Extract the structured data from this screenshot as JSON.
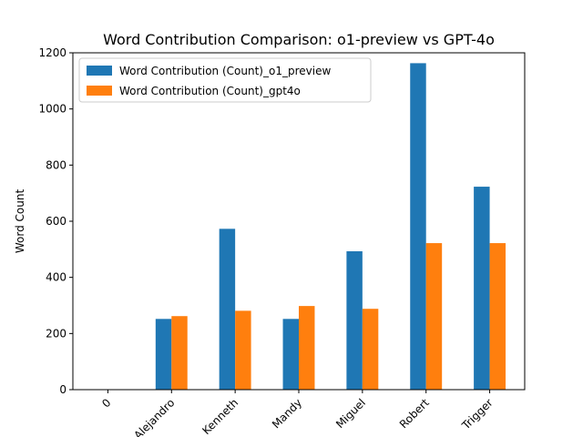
{
  "chart_data": {
    "type": "bar",
    "title": "Word Contribution Comparison: o1-preview vs GPT-4o",
    "xlabel": "",
    "ylabel": "Word Count",
    "categories": [
      "0",
      "Alejandro",
      "Kenneth",
      "Mandy",
      "Miguel",
      "Robert",
      "Trigger"
    ],
    "series": [
      {
        "name": "Word Contribution (Count)_o1_preview",
        "color": "#1f77b4",
        "values": [
          0,
          252,
          573,
          252,
          493,
          1163,
          723
        ]
      },
      {
        "name": "Word Contribution (Count)_gpt4o",
        "color": "#ff7f0e",
        "values": [
          0,
          262,
          281,
          298,
          288,
          522,
          522
        ]
      }
    ],
    "ylim": [
      0,
      1200
    ],
    "yticks": [
      "0",
      "200",
      "400",
      "600",
      "800",
      "1000",
      "1200"
    ],
    "legend": "top-left",
    "grid": false
  }
}
